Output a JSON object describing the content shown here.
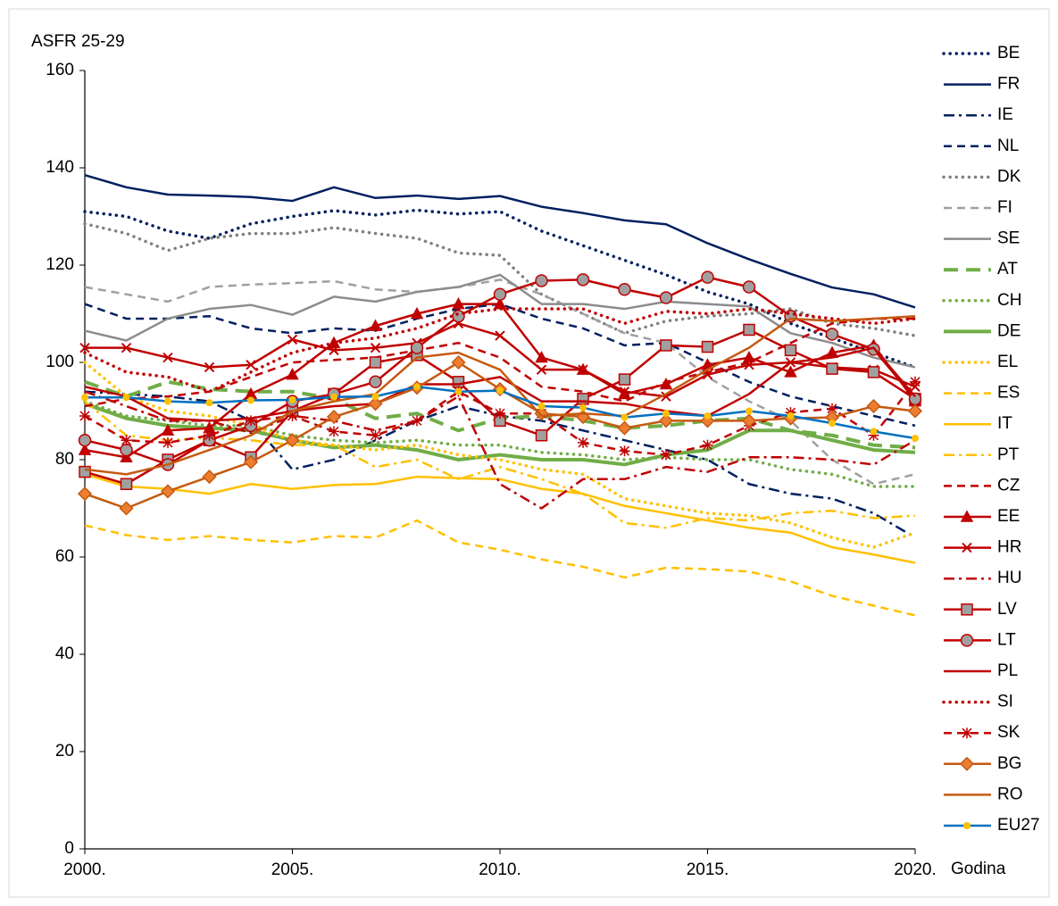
{
  "chart_data": {
    "type": "line",
    "y_label": "ASFR 25-29",
    "x_label": "Godina",
    "x": [
      2000,
      2001,
      2002,
      2003,
      2004,
      2005,
      2006,
      2007,
      2008,
      2009,
      2010,
      2011,
      2012,
      2013,
      2014,
      2015,
      2016,
      2017,
      2018,
      2019,
      2020
    ],
    "xlim": [
      2000,
      2020
    ],
    "xticks": [
      {
        "value": 2000,
        "label": "2000."
      },
      {
        "value": 2005,
        "label": "2005."
      },
      {
        "value": 2010,
        "label": "2010."
      },
      {
        "value": 2015,
        "label": "2015."
      },
      {
        "value": 2020,
        "label": "2020."
      }
    ],
    "ylim": [
      0,
      160
    ],
    "yticks": [
      0,
      20,
      40,
      60,
      80,
      100,
      120,
      140,
      160
    ],
    "grid": false,
    "legend": "right",
    "series": [
      {
        "name": "BE",
        "color": "#002060",
        "style": "dotted",
        "values": [
          131,
          130,
          127,
          125.5,
          128.5,
          130,
          131.2,
          130.3,
          131.3,
          130.5,
          131,
          127,
          124,
          121,
          118,
          114.5,
          112,
          108,
          105,
          102,
          99
        ]
      },
      {
        "name": "FR",
        "color": "#002060",
        "style": "solid",
        "values": [
          138.5,
          136,
          134.5,
          134.3,
          134,
          133.2,
          136,
          133.8,
          134.3,
          133.6,
          134.2,
          132,
          130.7,
          129.2,
          128.4,
          124.5,
          121.2,
          118.2,
          115.4,
          114,
          111.3
        ]
      },
      {
        "name": "IE",
        "color": "#002060",
        "style": "dashdot",
        "values": [
          94,
          93.5,
          93,
          92,
          88,
          78,
          80,
          84,
          88,
          91,
          89,
          88,
          86,
          84,
          82,
          80,
          75,
          73,
          72,
          69,
          64
        ]
      },
      {
        "name": "NL",
        "color": "#002060",
        "style": "dashed",
        "values": [
          112,
          109,
          109,
          109.5,
          107,
          106,
          107,
          106.5,
          109,
          111,
          112,
          109,
          107,
          103.5,
          104,
          100,
          96,
          93,
          91,
          89,
          87
        ]
      },
      {
        "name": "DK",
        "color": "#808080",
        "style": "dotted",
        "values": [
          128.5,
          126.5,
          123,
          125.5,
          126.5,
          126.5,
          127.7,
          126.5,
          125.5,
          122.5,
          122,
          114,
          110,
          106,
          108.5,
          109.5,
          110,
          111,
          108,
          107,
          105.5
        ]
      },
      {
        "name": "FI",
        "color": "#a0a0a0",
        "style": "dashed",
        "values": [
          115.5,
          114,
          112.5,
          115.5,
          116,
          116.3,
          116.7,
          115,
          114.5,
          115.5,
          117,
          114,
          110,
          106,
          104,
          97,
          92,
          88,
          80,
          75,
          77
        ]
      },
      {
        "name": "SE",
        "color": "#8c8c8c",
        "style": "solid",
        "values": [
          106.5,
          104.5,
          109,
          111,
          111.8,
          109.8,
          113.5,
          112.5,
          114.5,
          115.5,
          118,
          112,
          112,
          111,
          112.5,
          112,
          111.5,
          106,
          104,
          101,
          99
        ]
      },
      {
        "name": "AT",
        "color": "#70ad47",
        "style": "longdash",
        "values": [
          96,
          93,
          96,
          94.5,
          94,
          94,
          92.5,
          88.5,
          89.5,
          86,
          88.5,
          89,
          88,
          86.5,
          87,
          88,
          88.5,
          86,
          85,
          83,
          82.5
        ]
      },
      {
        "name": "CH",
        "color": "#70ad47",
        "style": "dotted",
        "values": [
          92,
          89,
          88,
          87,
          87,
          85,
          84,
          83.5,
          84,
          83,
          83,
          81.5,
          81,
          80,
          80.5,
          80,
          80,
          78,
          77,
          74.5,
          74.5
        ]
      },
      {
        "name": "DE",
        "color": "#70ad47",
        "style": "thick",
        "values": [
          91.5,
          88.5,
          87,
          86.5,
          86,
          84,
          82.5,
          83,
          82,
          80,
          81,
          80,
          80,
          79,
          81,
          82,
          86,
          86,
          84,
          82,
          81.5
        ]
      },
      {
        "name": "EL",
        "color": "#ffc000",
        "style": "dotted",
        "values": [
          100,
          93,
          90,
          89,
          87,
          84,
          83,
          82,
          83,
          81,
          80,
          78,
          77,
          72,
          70.5,
          69,
          68.5,
          67,
          64,
          62,
          65
        ]
      },
      {
        "name": "ES",
        "color": "#ffc000",
        "style": "dashed",
        "values": [
          66.5,
          64.5,
          63.5,
          64.3,
          63.5,
          63,
          64.3,
          64,
          67.5,
          63,
          61.5,
          59.5,
          58,
          55.8,
          57.8,
          57.5,
          57,
          55,
          52,
          50,
          48
        ]
      },
      {
        "name": "IT",
        "color": "#ffc000",
        "style": "solid",
        "values": [
          77,
          74.5,
          74,
          73,
          75,
          74,
          74.8,
          75,
          76.5,
          76.2,
          76,
          74,
          73,
          70.5,
          69,
          67.5,
          66,
          65,
          62,
          60.5,
          58.8
        ]
      },
      {
        "name": "PT",
        "color": "#ffc000",
        "style": "dashdot",
        "values": [
          92,
          85,
          84,
          84.5,
          84,
          83,
          83,
          78.5,
          80,
          76,
          78.5,
          76,
          73,
          67,
          66,
          68,
          67.5,
          69,
          69.5,
          68,
          68.5
        ]
      },
      {
        "name": "CZ",
        "color": "#c00000",
        "style": "dashed",
        "values": [
          91,
          92.5,
          93,
          94,
          97,
          100,
          100.5,
          101,
          102.5,
          104,
          101,
          95,
          94,
          92,
          96,
          98,
          100,
          104,
          108,
          109,
          109
        ]
      },
      {
        "name": "EE",
        "color": "#c00000",
        "style": "solid",
        "marker": "triangle",
        "values": [
          82,
          80.5,
          86,
          86.5,
          93.5,
          97.5,
          104,
          107.5,
          110,
          112,
          112,
          101,
          98.5,
          93.5,
          95.5,
          99.5,
          101,
          98,
          102,
          103.5,
          92
        ]
      },
      {
        "name": "HR",
        "color": "#c00000",
        "style": "solid",
        "marker": "x",
        "values": [
          103,
          103,
          101,
          99,
          99.5,
          104.7,
          102.5,
          103,
          104,
          108,
          105.5,
          98.5,
          98.5,
          94,
          93,
          97.5,
          99.5,
          100,
          99,
          98.5,
          95
        ]
      },
      {
        "name": "HU",
        "color": "#c00000",
        "style": "dashdot",
        "values": [
          94,
          91,
          88,
          88,
          85.5,
          89,
          88,
          86,
          88,
          93,
          75,
          70,
          76,
          76,
          78.5,
          77.5,
          80.5,
          80.5,
          80,
          79,
          84
        ]
      },
      {
        "name": "LV",
        "color": "#c00000",
        "style": "solid",
        "marker": "square",
        "marker_color": "#a0a0a0",
        "values": [
          77.5,
          75,
          80,
          84,
          80.5,
          90,
          93.5,
          100,
          101.5,
          96,
          88,
          85,
          92.5,
          96.5,
          103.5,
          103.2,
          106.7,
          102.5,
          98.7,
          98,
          92.5
        ]
      },
      {
        "name": "LT",
        "color": "#c00000",
        "style": "solid",
        "marker": "circle",
        "marker_color": "#a0a0a0",
        "values": [
          84,
          82,
          79,
          84,
          87,
          92,
          93.5,
          96,
          103,
          109.5,
          114,
          116.8,
          117,
          115,
          113.3,
          117.5,
          115.5,
          109.5,
          105.8,
          102.7,
          92.5
        ]
      },
      {
        "name": "PL",
        "color": "#c00000",
        "style": "solid",
        "values": [
          95,
          93,
          88.5,
          88,
          88.5,
          90,
          91,
          91.5,
          95.5,
          95.5,
          97,
          92,
          92,
          91.5,
          90,
          89,
          93.5,
          100,
          101,
          103,
          93
        ]
      },
      {
        "name": "SI",
        "color": "#c00000",
        "style": "dotted",
        "values": [
          102,
          98,
          97,
          94,
          98,
          102,
          104,
          105,
          107,
          110,
          111,
          111,
          111,
          108,
          110.5,
          110,
          111,
          110,
          109,
          108,
          109
        ]
      },
      {
        "name": "SK",
        "color": "#c00000",
        "style": "dashed",
        "marker": "asterisk",
        "values": [
          89,
          84,
          83.5,
          85,
          88,
          89,
          85.8,
          85,
          88,
          94,
          89.5,
          89.5,
          83.5,
          81.8,
          81,
          83,
          87,
          89.7,
          90.5,
          85,
          96
        ]
      },
      {
        "name": "BG",
        "color": "#c55a11",
        "style": "solid",
        "marker": "diamond",
        "marker_color": "#ed7d31",
        "values": [
          73,
          70,
          73.5,
          76.5,
          79.5,
          84,
          88.8,
          91.5,
          94.8,
          100,
          94.5,
          89.5,
          88.8,
          86.5,
          88,
          88,
          88,
          88.5,
          88.7,
          91,
          90
        ]
      },
      {
        "name": "RO",
        "color": "#c55a11",
        "style": "solid",
        "values": [
          78,
          77,
          79,
          82,
          85,
          90,
          92,
          93.5,
          101,
          102,
          98.5,
          89,
          89.5,
          89,
          93.5,
          98.5,
          103,
          109,
          108.5,
          109,
          109.5
        ]
      },
      {
        "name": "EU27",
        "color": "#0070c0",
        "style": "solid",
        "marker": "dot",
        "marker_color": "#ffc000",
        "values": [
          92.8,
          92.8,
          92,
          91.7,
          92.2,
          92.3,
          92.9,
          93,
          95,
          94,
          94.2,
          91,
          90.7,
          88.7,
          89.5,
          89,
          90,
          89,
          87.5,
          85.8,
          84.4
        ]
      }
    ]
  }
}
